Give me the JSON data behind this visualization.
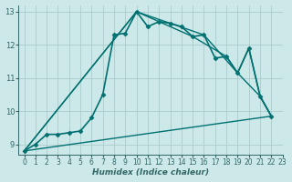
{
  "title": "",
  "xlabel": "Humidex (Indice chaleur)",
  "ylabel": "",
  "bg_color": "#cce8e8",
  "grid_color": "#aacccc",
  "line_color": "#007070",
  "xlim": [
    -0.5,
    23
  ],
  "ylim": [
    8.7,
    13.2
  ],
  "yticks": [
    9,
    10,
    11,
    12,
    13
  ],
  "xticks": [
    0,
    1,
    2,
    3,
    4,
    5,
    6,
    7,
    8,
    9,
    10,
    11,
    12,
    13,
    14,
    15,
    16,
    17,
    18,
    19,
    20,
    21,
    22,
    23
  ],
  "series": [
    {
      "x": [
        0,
        1,
        2,
        3,
        4,
        5,
        6,
        7,
        8,
        9,
        10,
        11,
        12,
        13,
        14,
        15,
        16,
        17,
        18,
        19,
        20,
        21,
        22
      ],
      "y": [
        8.8,
        9.0,
        9.3,
        9.3,
        9.35,
        9.4,
        9.8,
        10.5,
        12.3,
        12.35,
        13.0,
        12.55,
        12.7,
        12.65,
        12.55,
        12.25,
        12.3,
        11.6,
        11.65,
        11.15,
        11.9,
        10.45,
        9.85
      ],
      "marker": "D",
      "markersize": 2.5,
      "linewidth": 1.2
    },
    {
      "x": [
        0,
        10,
        15,
        18,
        19,
        20,
        21,
        22
      ],
      "y": [
        8.8,
        13.0,
        12.25,
        11.65,
        11.15,
        11.9,
        10.45,
        9.85
      ],
      "marker": null,
      "markersize": 0,
      "linewidth": 1.0
    },
    {
      "x": [
        0,
        10,
        16,
        19,
        21,
        22
      ],
      "y": [
        8.8,
        13.0,
        12.3,
        11.15,
        10.45,
        9.85
      ],
      "marker": null,
      "markersize": 0,
      "linewidth": 1.0
    },
    {
      "x": [
        0,
        22
      ],
      "y": [
        8.8,
        9.85
      ],
      "marker": null,
      "markersize": 0,
      "linewidth": 1.0
    }
  ]
}
